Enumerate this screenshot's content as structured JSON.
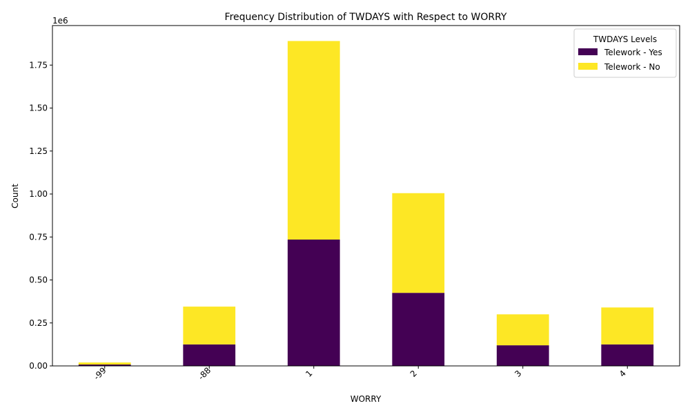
{
  "chart_data": {
    "type": "bar",
    "stacked": true,
    "title": "Frequency Distribution of TWDAYS with Respect to WORRY",
    "xlabel": "WORRY",
    "ylabel": "Count",
    "y_offset_label": "1e6",
    "categories": [
      "-99",
      "-88",
      "1",
      "2",
      "3",
      "4"
    ],
    "y_ticks": [
      "0.00",
      "0.25",
      "0.50",
      "0.75",
      "1.00",
      "1.25",
      "1.50",
      "1.75"
    ],
    "y_tick_values": [
      0,
      250000,
      500000,
      750000,
      1000000,
      1250000,
      1500000,
      1750000
    ],
    "ylim": [
      0,
      1980000
    ],
    "legend_title": "TWDAYS Levels",
    "legend_position": "top-right",
    "grid": false,
    "series": [
      {
        "name": "Telework - Yes",
        "color": "#440154",
        "values": [
          8000,
          125000,
          735000,
          425000,
          120000,
          125000
        ]
      },
      {
        "name": "Telework - No",
        "color": "#fde725",
        "values": [
          12000,
          220000,
          1155000,
          580000,
          180000,
          215000
        ]
      }
    ]
  }
}
